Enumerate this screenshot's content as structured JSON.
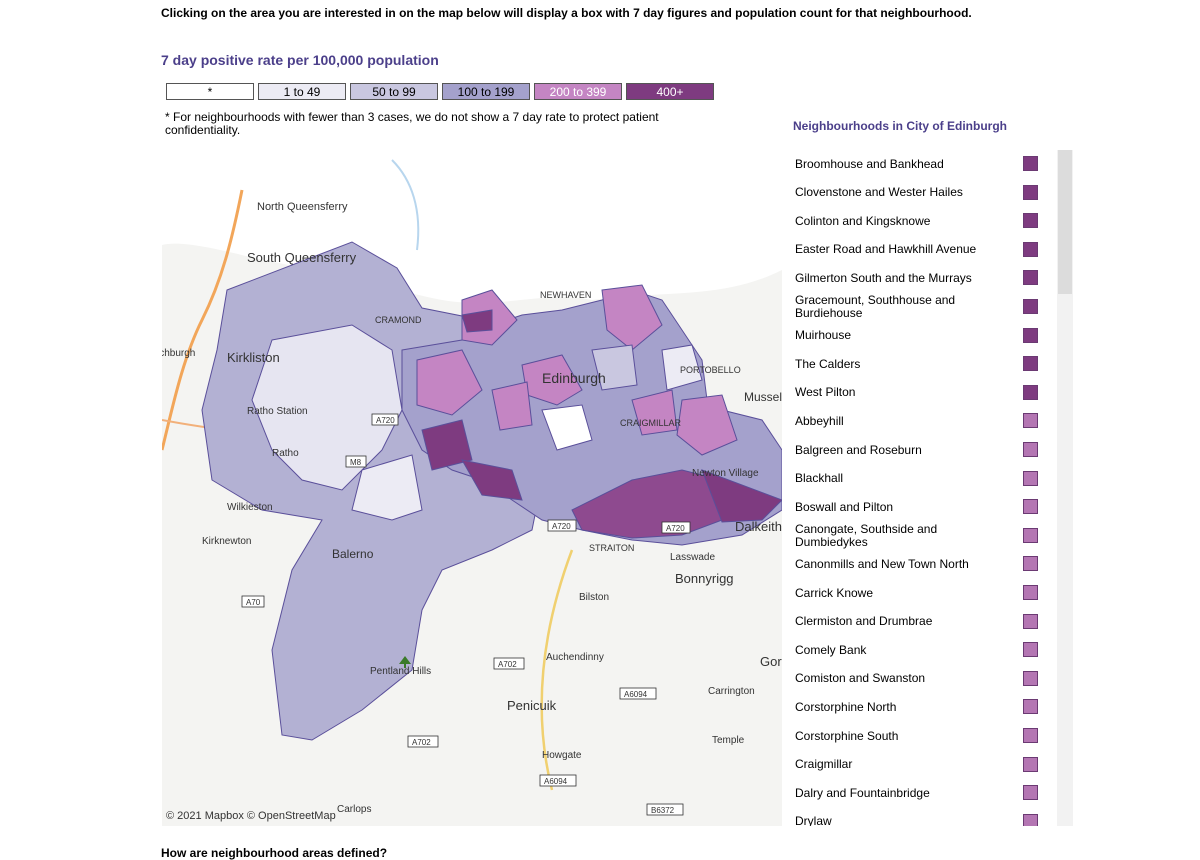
{
  "intro": "Clicking on the area you are interested in on the map below will display a box with 7 day figures and population count for that neighbourhood.",
  "legend": {
    "title": "7 day positive rate per 100,000 population",
    "items": [
      {
        "label": "*",
        "color": "#ffffff",
        "text_color": "#000000"
      },
      {
        "label": "1 to 49",
        "color": "#ecebf4",
        "text_color": "#000000"
      },
      {
        "label": "50 to 99",
        "color": "#c9c7e0",
        "text_color": "#000000"
      },
      {
        "label": "100 to 199",
        "color": "#a4a1cc",
        "text_color": "#000000"
      },
      {
        "label": "200 to 399",
        "color": "#c485c3",
        "text_color": "#ffffff"
      },
      {
        "label": "400+",
        "color": "#7e3b80",
        "text_color": "#ffffff"
      }
    ],
    "note": "* For neighbourhoods with fewer than 3 cases, we do not show a 7 day rate to protect patient confidentiality."
  },
  "map": {
    "attribution": "© 2021 Mapbox © OpenStreetMap",
    "place_labels": [
      "North Queensferry",
      "South Queensferry",
      "Kirkliston",
      "Ratho Station",
      "Ratho",
      "Wilkieston",
      "Kirknewton",
      "Balerno",
      "Pentland Hills",
      "Penicuik",
      "Auchendinny",
      "Bilston",
      "Bonnyrigg",
      "Lasswade",
      "Dalkeith",
      "Newton Village",
      "Musselburgh",
      "Carrington",
      "Temple",
      "Howgate",
      "Carlops",
      "Edinburgh",
      "STRAITON",
      "NEWHAVEN",
      "CRAMOND",
      "PORTOBELLO",
      "CRAIGMILLAR",
      "Gor",
      "ichburgh"
    ],
    "road_labels": [
      "A720",
      "M8",
      "A70",
      "A702",
      "A702",
      "A6094",
      "A6094",
      "B6372",
      "A720",
      "A720"
    ]
  },
  "neighbourhoods": {
    "title": "Neighbourhoods in City of Edinburgh",
    "items": [
      {
        "name": "Broomhouse and Bankhead",
        "color": "#7e3b80"
      },
      {
        "name": "Clovenstone and Wester Hailes",
        "color": "#7e3b80"
      },
      {
        "name": "Colinton and Kingsknowe",
        "color": "#7e3b80"
      },
      {
        "name": "Easter Road and Hawkhill Avenue",
        "color": "#7e3b80"
      },
      {
        "name": "Gilmerton South and the Murrays",
        "color": "#7e3b80"
      },
      {
        "name": "Gracemount, Southhouse and Burdiehouse",
        "color": "#7e3b80"
      },
      {
        "name": "Muirhouse",
        "color": "#7e3b80"
      },
      {
        "name": "The Calders",
        "color": "#7e3b80"
      },
      {
        "name": "West Pilton",
        "color": "#7e3b80"
      },
      {
        "name": "Abbeyhill",
        "color": "#b476b3"
      },
      {
        "name": "Balgreen and Roseburn",
        "color": "#b476b3"
      },
      {
        "name": "Blackhall",
        "color": "#b476b3"
      },
      {
        "name": "Boswall and Pilton",
        "color": "#b476b3"
      },
      {
        "name": "Canongate, Southside and Dumbiedykes",
        "color": "#b476b3"
      },
      {
        "name": "Canonmills and New Town North",
        "color": "#b476b3"
      },
      {
        "name": "Carrick Knowe",
        "color": "#b476b3"
      },
      {
        "name": "Clermiston and Drumbrae",
        "color": "#b476b3"
      },
      {
        "name": "Comely Bank",
        "color": "#b476b3"
      },
      {
        "name": "Comiston and Swanston",
        "color": "#b476b3"
      },
      {
        "name": "Corstorphine North",
        "color": "#b476b3"
      },
      {
        "name": "Corstorphine South",
        "color": "#b476b3"
      },
      {
        "name": "Craigmillar",
        "color": "#b476b3"
      },
      {
        "name": "Dalry and Fountainbridge",
        "color": "#b476b3"
      },
      {
        "name": "Drylaw",
        "color": "#b476b3"
      }
    ]
  },
  "footer": "How are neighbourhood areas defined?"
}
